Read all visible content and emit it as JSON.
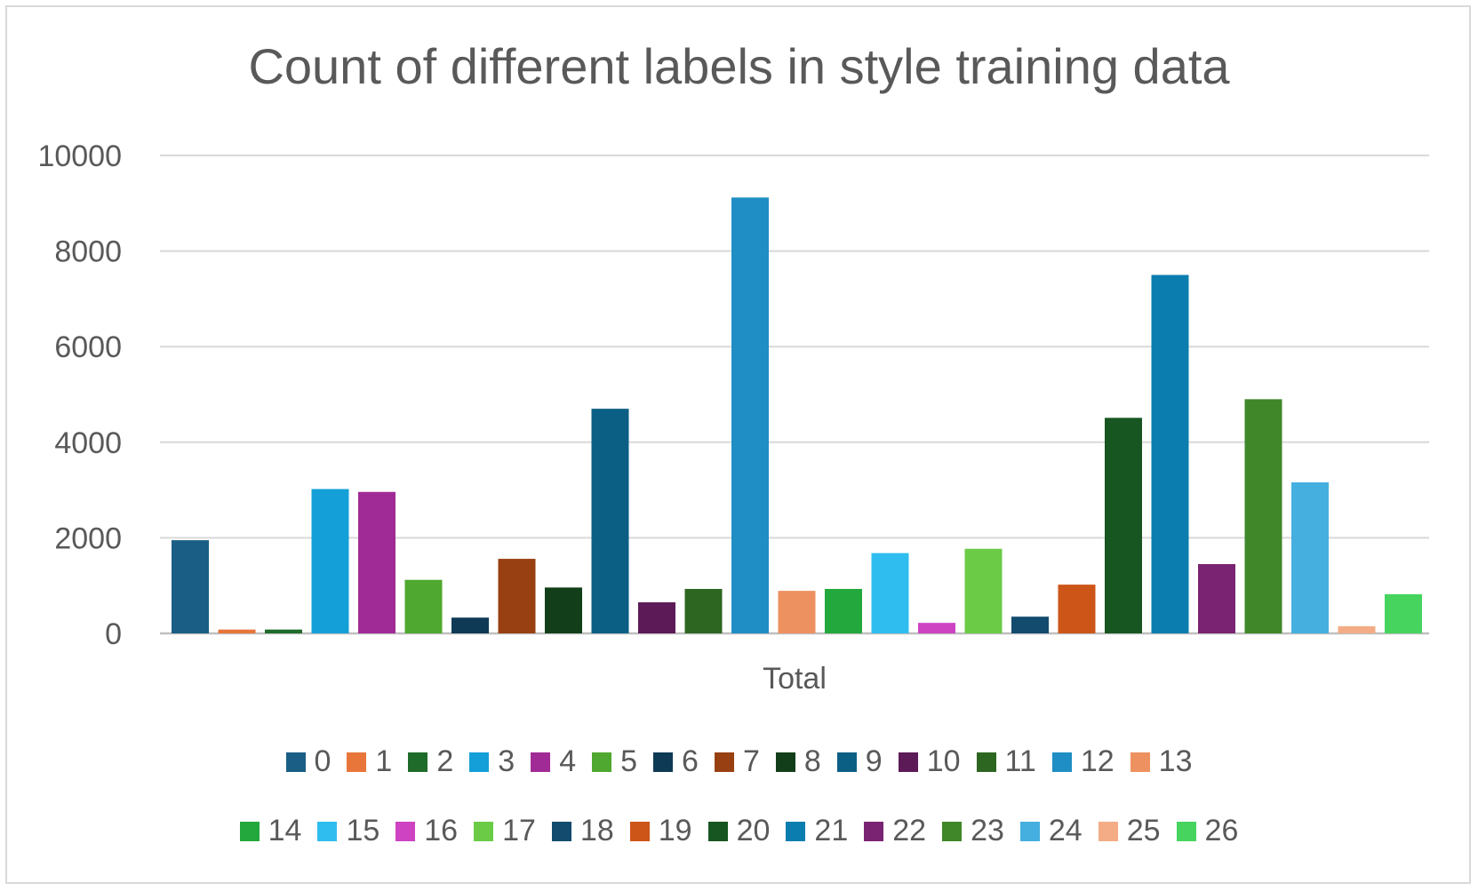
{
  "chart_data": {
    "type": "bar",
    "title": "Count of different labels in style training data",
    "categories": [
      "Total"
    ],
    "ylim": [
      0,
      10000
    ],
    "yticks": [
      "0",
      "2000",
      "4000",
      "6000",
      "8000",
      "10000"
    ],
    "grid": true,
    "legend_position": "bottom",
    "series": [
      {
        "name": "0",
        "values": [
          1950
        ],
        "color": "#1a5e85"
      },
      {
        "name": "1",
        "values": [
          80
        ],
        "color": "#e8763b"
      },
      {
        "name": "2",
        "values": [
          80
        ],
        "color": "#1e6b2a"
      },
      {
        "name": "3",
        "values": [
          3020
        ],
        "color": "#159fd8"
      },
      {
        "name": "4",
        "values": [
          2960
        ],
        "color": "#a12b96"
      },
      {
        "name": "5",
        "values": [
          1120
        ],
        "color": "#4fa82f"
      },
      {
        "name": "6",
        "values": [
          330
        ],
        "color": "#0e3a55"
      },
      {
        "name": "7",
        "values": [
          1560
        ],
        "color": "#984012"
      },
      {
        "name": "8",
        "values": [
          960
        ],
        "color": "#123f19"
      },
      {
        "name": "9",
        "values": [
          4700
        ],
        "color": "#0b5f84"
      },
      {
        "name": "10",
        "values": [
          650
        ],
        "color": "#5c1a57"
      },
      {
        "name": "11",
        "values": [
          930
        ],
        "color": "#2d6620"
      },
      {
        "name": "12",
        "values": [
          9120
        ],
        "color": "#1f8ec4"
      },
      {
        "name": "13",
        "values": [
          890
        ],
        "color": "#ee9160"
      },
      {
        "name": "14",
        "values": [
          930
        ],
        "color": "#22a83c"
      },
      {
        "name": "15",
        "values": [
          1680
        ],
        "color": "#2fbdf0"
      },
      {
        "name": "16",
        "values": [
          220
        ],
        "color": "#cd43c2"
      },
      {
        "name": "17",
        "values": [
          1770
        ],
        "color": "#6bcb47"
      },
      {
        "name": "18",
        "values": [
          350
        ],
        "color": "#134b6e"
      },
      {
        "name": "19",
        "values": [
          1020
        ],
        "color": "#cd5518"
      },
      {
        "name": "20",
        "values": [
          4510
        ],
        "color": "#175621"
      },
      {
        "name": "21",
        "values": [
          7500
        ],
        "color": "#0b7eaf"
      },
      {
        "name": "22",
        "values": [
          1450
        ],
        "color": "#7a2373"
      },
      {
        "name": "23",
        "values": [
          4900
        ],
        "color": "#3f8729"
      },
      {
        "name": "24",
        "values": [
          3160
        ],
        "color": "#45afe0"
      },
      {
        "name": "25",
        "values": [
          150
        ],
        "color": "#f3ac86"
      },
      {
        "name": "26",
        "values": [
          820
        ],
        "color": "#46d45f"
      }
    ]
  }
}
